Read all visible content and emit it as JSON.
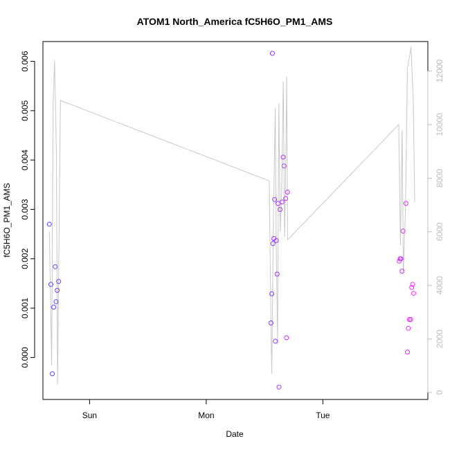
{
  "chart_data": {
    "type": "scatter",
    "title": "ATOM1 North_America fC5H6O_PM1_AMS",
    "xlabel": "Date",
    "ylabel": "fC5H6O_PM1_AMS",
    "x_unit": "days",
    "x_ticks": [
      {
        "label": "Sun",
        "value": 1.0
      },
      {
        "label": "Mon",
        "value": 2.0
      },
      {
        "label": "Tue",
        "value": 3.0
      }
    ],
    "xlim": [
      0.6,
      3.9
    ],
    "ylim": [
      -0.00085,
      0.0064
    ],
    "y_ticks": [
      0.0,
      0.001,
      0.002,
      0.003,
      0.004,
      0.005,
      0.006
    ],
    "y_tick_labels": [
      "0.000",
      "0.001",
      "0.002",
      "0.003",
      "0.004",
      "0.005",
      "0.006"
    ],
    "y2_ticks": [
      0,
      2000,
      4000,
      6000,
      8000,
      10000,
      12000
    ],
    "y2_tick_labels": [
      "0",
      "2000",
      "4000",
      "6000",
      "8000",
      "10000",
      "12000"
    ],
    "y2lim": [
      -260,
      13100
    ],
    "colors": {
      "points_start": "#5a3cff",
      "points_end": "#ff22ff",
      "line": "#c8c8c8",
      "right_axis": "#bdbdbd"
    },
    "points": [
      {
        "x": 0.655,
        "y": 0.0027
      },
      {
        "x": 0.668,
        "y": 0.00148
      },
      {
        "x": 0.68,
        "y": -0.00033
      },
      {
        "x": 0.692,
        "y": 0.00102
      },
      {
        "x": 0.705,
        "y": 0.00184
      },
      {
        "x": 0.712,
        "y": 0.00113
      },
      {
        "x": 0.722,
        "y": 0.00136
      },
      {
        "x": 0.735,
        "y": 0.00154
      },
      {
        "x": 2.555,
        "y": 0.0007
      },
      {
        "x": 2.562,
        "y": 0.00129
      },
      {
        "x": 2.567,
        "y": 0.00616
      },
      {
        "x": 2.572,
        "y": 0.00231
      },
      {
        "x": 2.58,
        "y": 0.00241
      },
      {
        "x": 2.586,
        "y": 0.0032
      },
      {
        "x": 2.593,
        "y": 0.00033
      },
      {
        "x": 2.601,
        "y": 0.00237
      },
      {
        "x": 2.608,
        "y": 0.00169
      },
      {
        "x": 2.616,
        "y": 0.00312
      },
      {
        "x": 2.624,
        "y": -0.0006
      },
      {
        "x": 2.633,
        "y": 0.003
      },
      {
        "x": 2.65,
        "y": 0.00315
      },
      {
        "x": 2.66,
        "y": 0.00406
      },
      {
        "x": 2.668,
        "y": 0.00388
      },
      {
        "x": 2.681,
        "y": 0.00322
      },
      {
        "x": 2.688,
        "y": 0.0004
      },
      {
        "x": 2.697,
        "y": 0.00335
      },
      {
        "x": 3.655,
        "y": 0.00195
      },
      {
        "x": 3.662,
        "y": 0.002
      },
      {
        "x": 3.67,
        "y": 0.002
      },
      {
        "x": 3.68,
        "y": 0.00175
      },
      {
        "x": 3.687,
        "y": 0.00256
      },
      {
        "x": 3.712,
        "y": 0.00312
      },
      {
        "x": 3.725,
        "y": 0.00011
      },
      {
        "x": 3.733,
        "y": 0.00059
      },
      {
        "x": 3.742,
        "y": 0.00077
      },
      {
        "x": 3.752,
        "y": 0.00077
      },
      {
        "x": 3.762,
        "y": 0.00142
      },
      {
        "x": 3.77,
        "y": 0.00148
      },
      {
        "x": 3.778,
        "y": 0.0013
      }
    ],
    "line_series": [
      {
        "x": 0.655,
        "y": 6000
      },
      {
        "x": 0.675,
        "y": 1000
      },
      {
        "x": 0.688,
        "y": 10800
      },
      {
        "x": 0.7,
        "y": 12400
      },
      {
        "x": 0.715,
        "y": 9000
      },
      {
        "x": 0.725,
        "y": 300
      },
      {
        "x": 0.75,
        "y": 10900
      },
      {
        "x": 2.54,
        "y": 7900
      },
      {
        "x": 2.555,
        "y": 2500
      },
      {
        "x": 2.562,
        "y": 700
      },
      {
        "x": 2.572,
        "y": 5000
      },
      {
        "x": 2.58,
        "y": 7500
      },
      {
        "x": 2.592,
        "y": 10600
      },
      {
        "x": 2.6,
        "y": 5500
      },
      {
        "x": 2.612,
        "y": 1800
      },
      {
        "x": 2.622,
        "y": 10800
      },
      {
        "x": 2.635,
        "y": 6000
      },
      {
        "x": 2.648,
        "y": 7800
      },
      {
        "x": 2.66,
        "y": 11600
      },
      {
        "x": 2.672,
        "y": 5800
      },
      {
        "x": 2.683,
        "y": 9000
      },
      {
        "x": 2.69,
        "y": 11800
      },
      {
        "x": 2.698,
        "y": 5700
      },
      {
        "x": 3.65,
        "y": 10000
      },
      {
        "x": 3.665,
        "y": 5500
      },
      {
        "x": 3.68,
        "y": 9800
      },
      {
        "x": 3.69,
        "y": 4500
      },
      {
        "x": 3.708,
        "y": 6800
      },
      {
        "x": 3.725,
        "y": 12100
      },
      {
        "x": 3.745,
        "y": 12600
      },
      {
        "x": 3.755,
        "y": 12900
      },
      {
        "x": 3.775,
        "y": 11000
      },
      {
        "x": 3.787,
        "y": 7100
      }
    ]
  }
}
